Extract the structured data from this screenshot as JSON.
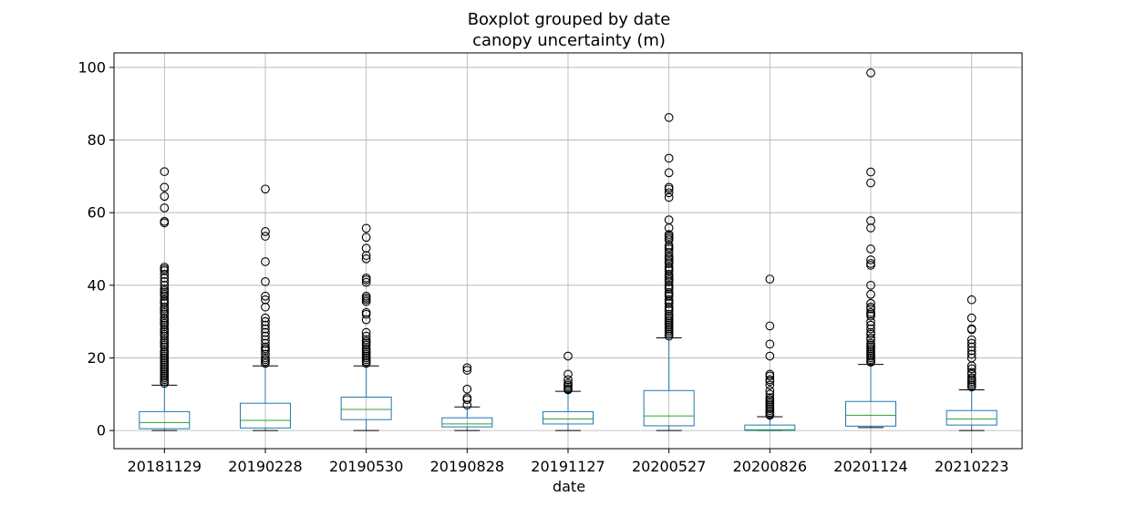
{
  "chart_data": {
    "type": "box",
    "title": "Boxplot grouped by date",
    "subtitle": "canopy uncertainty (m)",
    "xlabel": "date",
    "ylabel": "",
    "ylim": [
      -5,
      104
    ],
    "yticks": [
      0,
      20,
      40,
      60,
      80,
      100
    ],
    "grid": true,
    "colors": {
      "box": "#1f77b4",
      "median": "#2ca02c",
      "whisker": "#1f77b4",
      "cap": "#000000",
      "flier": "#000000",
      "grid": "#b0b0b0"
    },
    "categories": [
      "20181129",
      "20190228",
      "20190530",
      "20190828",
      "20191127",
      "20200527",
      "20200826",
      "20201124",
      "20210223"
    ],
    "boxes": [
      {
        "whislo": 0,
        "q1": 0.5,
        "med": 2.2,
        "q3": 5.2,
        "whishi": 12.5,
        "fliers": [
          71.3,
          67,
          64.5,
          61.3,
          57.6,
          57.2,
          45,
          44.5,
          44,
          43,
          42,
          41,
          40,
          39,
          38.5,
          38,
          37.5,
          37,
          36,
          35.5,
          35,
          34,
          33.5,
          33,
          32.5,
          32,
          31,
          30.5,
          30,
          29.5,
          29,
          28,
          27.5,
          27,
          26.5,
          26,
          25,
          24.5,
          24,
          23.5,
          23,
          22,
          21.5,
          21,
          20.5,
          20,
          19.5,
          19,
          18.5,
          18,
          17.5,
          17,
          16.5,
          16,
          15.5,
          15,
          14.5,
          14,
          13.5,
          13
        ]
      },
      {
        "whislo": 0,
        "q1": 0.7,
        "med": 2.8,
        "q3": 7.5,
        "whishi": 17.8,
        "fliers": [
          66.5,
          54.8,
          53.5,
          46.5,
          41,
          37,
          36,
          34,
          31,
          30,
          29,
          28,
          27,
          26,
          25,
          24,
          23,
          22.5,
          22,
          21,
          20,
          19.5,
          19,
          18.5
        ]
      },
      {
        "whislo": 0,
        "q1": 3,
        "med": 5.8,
        "q3": 9.2,
        "whishi": 17.8,
        "fliers": [
          55.7,
          53.2,
          50.2,
          48.2,
          47.3,
          42,
          41.5,
          40.8,
          37,
          36.5,
          36,
          35.5,
          32.5,
          32,
          30.5,
          27,
          26,
          25,
          24.5,
          24,
          23.5,
          22.5,
          22,
          21.5,
          21,
          20.5,
          20,
          19.5,
          19,
          18.5
        ]
      },
      {
        "whislo": 0,
        "q1": 1,
        "med": 1.8,
        "q3": 3.5,
        "whishi": 6.5,
        "fliers": [
          17.3,
          16.6,
          11.4,
          9,
          8.5,
          7
        ]
      },
      {
        "whislo": 0,
        "q1": 1.8,
        "med": 3.2,
        "q3": 5.2,
        "whishi": 10.8,
        "fliers": [
          20.5,
          15.5,
          14,
          13,
          12.5,
          12,
          11.5,
          11.2
        ]
      },
      {
        "whislo": 0,
        "q1": 1.3,
        "med": 4,
        "q3": 11,
        "whishi": 25.5,
        "fliers": [
          86.2,
          75,
          71,
          67,
          66.5,
          65.5,
          64.2,
          58,
          55.8,
          54,
          53.5,
          53,
          52.5,
          51,
          50.5,
          50,
          49,
          48,
          47.5,
          47,
          46.5,
          46,
          45,
          44.5,
          44,
          43,
          42.5,
          42,
          41.5,
          41,
          40,
          39.5,
          39,
          38,
          37.5,
          37,
          36,
          35.5,
          35,
          34,
          33.5,
          33,
          32,
          31.5,
          31,
          30.5,
          30,
          29.5,
          29,
          28.5,
          28,
          27.5,
          27,
          26.5,
          26
        ]
      },
      {
        "whislo": 0,
        "q1": 0,
        "med": 0.2,
        "q3": 1.5,
        "whishi": 3.8,
        "fliers": [
          41.7,
          28.8,
          23.8,
          20.5,
          15.5,
          15,
          14,
          13.5,
          12.5,
          11,
          10,
          9,
          8.5,
          8,
          7.5,
          7,
          6.5,
          6,
          5.5,
          5,
          4.5,
          4.2
        ]
      },
      {
        "whislo": 0.8,
        "q1": 1.2,
        "med": 4.2,
        "q3": 8,
        "whishi": 18.2,
        "fliers": [
          98.5,
          71.2,
          68.2,
          57.8,
          55.8,
          50,
          47,
          46,
          45.5,
          40,
          37.5,
          35,
          34,
          33.5,
          32.5,
          32,
          31.5,
          30,
          29,
          28,
          27,
          26.5,
          25.5,
          25,
          24,
          23.5,
          23,
          22.5,
          22,
          21.5,
          21,
          20.5,
          20,
          19.5,
          19,
          18.8
        ]
      },
      {
        "whislo": 0,
        "q1": 1.5,
        "med": 3.2,
        "q3": 5.5,
        "whishi": 11.2,
        "fliers": [
          36,
          31,
          28,
          27.8,
          25,
          24,
          23,
          22,
          21,
          20,
          17.8,
          17,
          16,
          15.5,
          14.5,
          14,
          13.5,
          13,
          12.5,
          12
        ]
      }
    ]
  }
}
